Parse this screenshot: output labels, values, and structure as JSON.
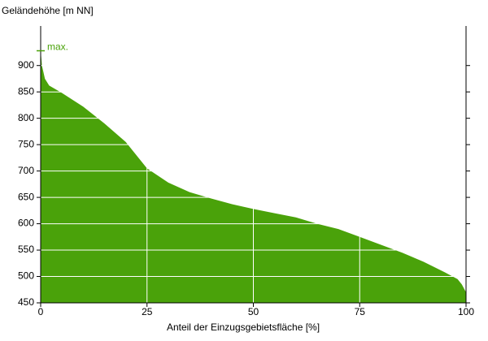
{
  "chart_data": {
    "type": "area",
    "y_label": "Geländehöhe [m NN]",
    "x_label": "Anteil der Einzugsgebietsfläche [%]",
    "x": [
      0,
      0.3,
      1,
      2,
      5,
      10,
      15,
      20,
      25,
      30,
      35,
      40,
      45,
      50,
      55,
      60,
      65,
      70,
      75,
      80,
      85,
      90,
      95,
      98,
      99,
      100
    ],
    "values": [
      928,
      900,
      875,
      862,
      848,
      822,
      790,
      755,
      705,
      678,
      660,
      648,
      637,
      628,
      620,
      612,
      600,
      590,
      575,
      560,
      545,
      528,
      508,
      495,
      485,
      470
    ],
    "color": "#4aa20a",
    "xlim": [
      0,
      100
    ],
    "xticks": [
      0,
      25,
      50,
      75,
      100
    ],
    "ylim": [
      450,
      975
    ],
    "yticks": [
      450,
      500,
      550,
      600,
      650,
      700,
      750,
      800,
      850,
      900
    ],
    "grid": true,
    "annotation": {
      "text": "max.",
      "value": 928
    }
  }
}
